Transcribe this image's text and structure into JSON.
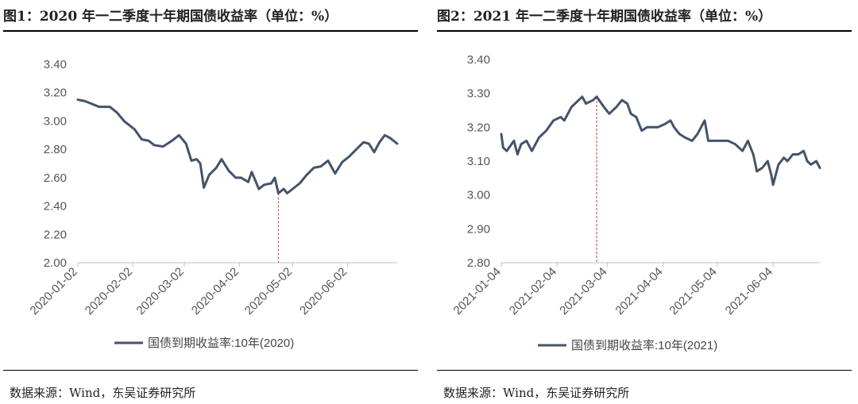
{
  "figures": [
    {
      "title": "图1：2020 年一二季度十年期国债收益率（单位：%）",
      "source": "数据来源：Wind，东吴证券研究所"
    },
    {
      "title": "图2：2021 年一二季度十年期国债收益率（单位：%）",
      "source": "数据来源：Wind，东吴证券研究所"
    }
  ],
  "chart_data": [
    {
      "type": "line",
      "title": "图1：2020 年一二季度十年期国债收益率（单位：%）",
      "ylim": [
        2.0,
        3.4
      ],
      "yticks": [
        "2.00",
        "2.20",
        "2.40",
        "2.60",
        "2.80",
        "3.00",
        "3.20",
        "3.40"
      ],
      "xticks": [
        "2020-01-02",
        "2020-02-02",
        "2020-03-02",
        "2020-04-02",
        "2020-05-02",
        "2020-06-02"
      ],
      "xlim": [
        "2020-01-02",
        "2020-06-30"
      ],
      "marker_date": "2020-04-24",
      "line_color": "#44546a",
      "marker_color": "#e03030",
      "series": [
        {
          "name": "国债到期收益率:10年(2020)",
          "points": [
            [
              "2020-01-02",
              3.15
            ],
            [
              "2020-01-06",
              3.14
            ],
            [
              "2020-01-10",
              3.12
            ],
            [
              "2020-01-14",
              3.1
            ],
            [
              "2020-01-20",
              3.1
            ],
            [
              "2020-01-24",
              3.06
            ],
            [
              "2020-01-28",
              3.0
            ],
            [
              "2020-02-03",
              2.94
            ],
            [
              "2020-02-07",
              2.87
            ],
            [
              "2020-02-11",
              2.86
            ],
            [
              "2020-02-14",
              2.83
            ],
            [
              "2020-02-19",
              2.82
            ],
            [
              "2020-02-24",
              2.86
            ],
            [
              "2020-02-28",
              2.9
            ],
            [
              "2020-03-03",
              2.84
            ],
            [
              "2020-03-06",
              2.72
            ],
            [
              "2020-03-09",
              2.73
            ],
            [
              "2020-03-11",
              2.7
            ],
            [
              "2020-03-13",
              2.53
            ],
            [
              "2020-03-16",
              2.62
            ],
            [
              "2020-03-20",
              2.67
            ],
            [
              "2020-03-23",
              2.73
            ],
            [
              "2020-03-27",
              2.65
            ],
            [
              "2020-03-31",
              2.6
            ],
            [
              "2020-04-03",
              2.6
            ],
            [
              "2020-04-07",
              2.57
            ],
            [
              "2020-04-09",
              2.64
            ],
            [
              "2020-04-13",
              2.52
            ],
            [
              "2020-04-16",
              2.55
            ],
            [
              "2020-04-20",
              2.56
            ],
            [
              "2020-04-22",
              2.6
            ],
            [
              "2020-04-24",
              2.49
            ],
            [
              "2020-04-27",
              2.52
            ],
            [
              "2020-04-29",
              2.49
            ],
            [
              "2020-05-06",
              2.56
            ],
            [
              "2020-05-10",
              2.62
            ],
            [
              "2020-05-14",
              2.67
            ],
            [
              "2020-05-18",
              2.68
            ],
            [
              "2020-05-22",
              2.72
            ],
            [
              "2020-05-26",
              2.63
            ],
            [
              "2020-05-30",
              2.71
            ],
            [
              "2020-06-03",
              2.75
            ],
            [
              "2020-06-07",
              2.8
            ],
            [
              "2020-06-11",
              2.85
            ],
            [
              "2020-06-14",
              2.84
            ],
            [
              "2020-06-17",
              2.78
            ],
            [
              "2020-06-20",
              2.85
            ],
            [
              "2020-06-23",
              2.9
            ],
            [
              "2020-06-26",
              2.88
            ],
            [
              "2020-06-30",
              2.84
            ]
          ]
        }
      ]
    },
    {
      "type": "line",
      "title": "图2：2021 年一二季度十年期国债收益率（单位：%）",
      "ylim": [
        2.8,
        3.4
      ],
      "yticks": [
        "2.80",
        "2.90",
        "3.00",
        "3.10",
        "3.20",
        "3.30",
        "3.40"
      ],
      "xticks": [
        "2021-01-04",
        "2021-02-04",
        "2021-03-04",
        "2021-04-04",
        "2021-05-04",
        "2021-06-04"
      ],
      "xlim": [
        "2021-01-04",
        "2021-06-30"
      ],
      "marker_date": "2021-02-26",
      "line_color": "#44546a",
      "marker_color": "#e03030",
      "series": [
        {
          "name": "国债到期收益率:10年(2021)",
          "points": [
            [
              "2021-01-04",
              3.18
            ],
            [
              "2021-01-05",
              3.14
            ],
            [
              "2021-01-07",
              3.13
            ],
            [
              "2021-01-11",
              3.16
            ],
            [
              "2021-01-13",
              3.12
            ],
            [
              "2021-01-15",
              3.15
            ],
            [
              "2021-01-18",
              3.16
            ],
            [
              "2021-01-21",
              3.13
            ],
            [
              "2021-01-25",
              3.17
            ],
            [
              "2021-01-27",
              3.18
            ],
            [
              "2021-01-29",
              3.19
            ],
            [
              "2021-02-02",
              3.22
            ],
            [
              "2021-02-06",
              3.23
            ],
            [
              "2021-02-08",
              3.22
            ],
            [
              "2021-02-12",
              3.26
            ],
            [
              "2021-02-16",
              3.28
            ],
            [
              "2021-02-18",
              3.29
            ],
            [
              "2021-02-20",
              3.27
            ],
            [
              "2021-02-24",
              3.28
            ],
            [
              "2021-02-26",
              3.29
            ],
            [
              "2021-03-02",
              3.26
            ],
            [
              "2021-03-05",
              3.24
            ],
            [
              "2021-03-09",
              3.26
            ],
            [
              "2021-03-12",
              3.28
            ],
            [
              "2021-03-15",
              3.27
            ],
            [
              "2021-03-17",
              3.24
            ],
            [
              "2021-03-20",
              3.23
            ],
            [
              "2021-03-23",
              3.19
            ],
            [
              "2021-03-26",
              3.2
            ],
            [
              "2021-03-29",
              3.2
            ],
            [
              "2021-04-01",
              3.2
            ],
            [
              "2021-04-05",
              3.21
            ],
            [
              "2021-04-08",
              3.22
            ],
            [
              "2021-04-10",
              3.2
            ],
            [
              "2021-04-13",
              3.18
            ],
            [
              "2021-04-16",
              3.17
            ],
            [
              "2021-04-20",
              3.16
            ],
            [
              "2021-04-23",
              3.18
            ],
            [
              "2021-04-27",
              3.22
            ],
            [
              "2021-04-29",
              3.16
            ],
            [
              "2021-05-04",
              3.16
            ],
            [
              "2021-05-10",
              3.16
            ],
            [
              "2021-05-14",
              3.15
            ],
            [
              "2021-05-18",
              3.13
            ],
            [
              "2021-05-21",
              3.16
            ],
            [
              "2021-05-24",
              3.12
            ],
            [
              "2021-05-26",
              3.07
            ],
            [
              "2021-05-29",
              3.08
            ],
            [
              "2021-06-01",
              3.1
            ],
            [
              "2021-06-03",
              3.06
            ],
            [
              "2021-06-04",
              3.03
            ],
            [
              "2021-06-07",
              3.09
            ],
            [
              "2021-06-10",
              3.11
            ],
            [
              "2021-06-12",
              3.1
            ],
            [
              "2021-06-15",
              3.12
            ],
            [
              "2021-06-18",
              3.12
            ],
            [
              "2021-06-21",
              3.13
            ],
            [
              "2021-06-23",
              3.1
            ],
            [
              "2021-06-25",
              3.09
            ],
            [
              "2021-06-28",
              3.1
            ],
            [
              "2021-06-30",
              3.08
            ]
          ]
        }
      ]
    }
  ]
}
